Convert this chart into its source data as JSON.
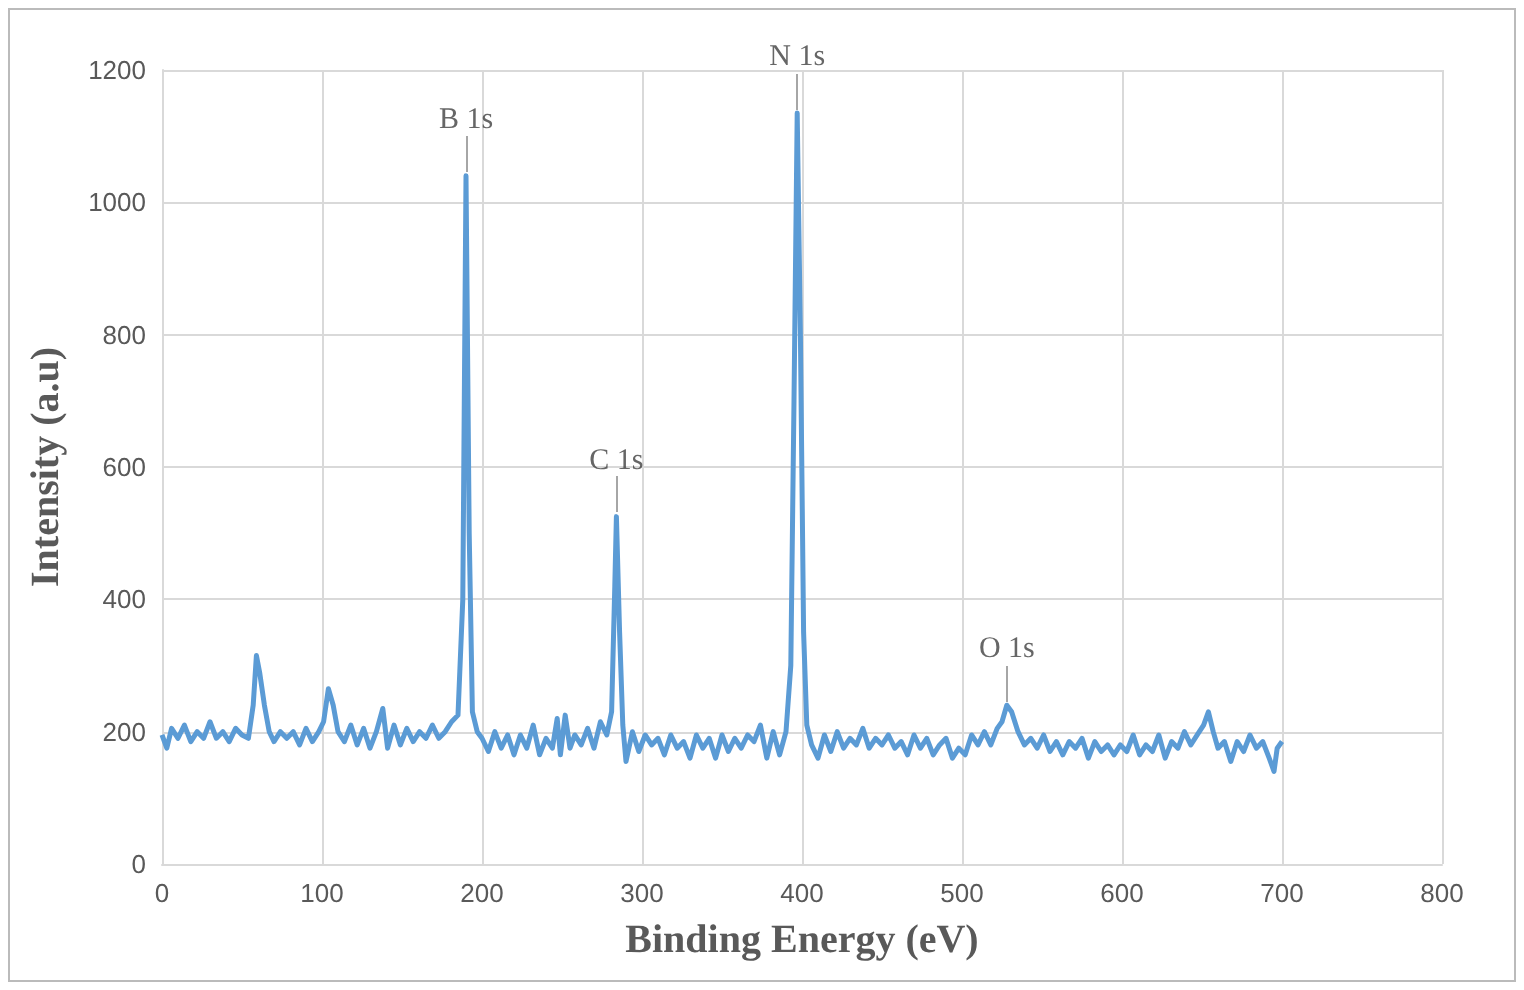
{
  "chart_data": {
    "type": "line",
    "xlabel": "Binding Energy (eV)",
    "ylabel": "Intensity (a.u)",
    "xlim": [
      0,
      800
    ],
    "xticks": [
      0,
      100,
      200,
      300,
      400,
      500,
      600,
      700,
      800
    ],
    "ylim": [
      0,
      1200
    ],
    "yticks": [
      0,
      200,
      400,
      600,
      800,
      1000,
      1200
    ],
    "grid": true,
    "marker": "none",
    "line_style": "solid",
    "annotations": [
      {
        "text": "B 1s",
        "x": 190,
        "y": 1040
      },
      {
        "text": "C 1s",
        "x": 284,
        "y": 525
      },
      {
        "text": "N 1s",
        "x": 397,
        "y": 1135
      },
      {
        "text": "O 1s",
        "x": 528,
        "y": 240
      }
    ],
    "series": [
      {
        "color": "#5b9bd5",
        "x": [
          0,
          3,
          6,
          10,
          14,
          18,
          22,
          26,
          30,
          34,
          38,
          42,
          46,
          50,
          54,
          57,
          59,
          61,
          64,
          67,
          70,
          74,
          78,
          82,
          86,
          90,
          94,
          98,
          101,
          104,
          107,
          110,
          114,
          118,
          122,
          126,
          130,
          134,
          138,
          141,
          145,
          149,
          153,
          157,
          161,
          165,
          169,
          173,
          177,
          181,
          185,
          188,
          190,
          192,
          194,
          197,
          200,
          204,
          208,
          212,
          216,
          220,
          224,
          228,
          232,
          236,
          240,
          244,
          247,
          249,
          252,
          255,
          258,
          262,
          266,
          270,
          274,
          278,
          281,
          283,
          284,
          286,
          288,
          290,
          294,
          298,
          302,
          306,
          310,
          314,
          318,
          322,
          326,
          330,
          334,
          338,
          342,
          346,
          350,
          354,
          358,
          362,
          366,
          370,
          374,
          378,
          382,
          386,
          390,
          393,
          395,
          397,
          399,
          401,
          403,
          406,
          410,
          414,
          418,
          422,
          426,
          430,
          434,
          438,
          442,
          446,
          450,
          454,
          458,
          462,
          466,
          470,
          474,
          478,
          482,
          486,
          490,
          494,
          498,
          502,
          506,
          510,
          514,
          518,
          522,
          525,
          528,
          531,
          535,
          539,
          543,
          547,
          551,
          555,
          559,
          563,
          567,
          571,
          575,
          579,
          583,
          587,
          591,
          595,
          599,
          603,
          607,
          611,
          615,
          619,
          623,
          627,
          631,
          635,
          639,
          643,
          647,
          651,
          654,
          657,
          660,
          664,
          668,
          672,
          676,
          680,
          684,
          688,
          692,
          695,
          697,
          700
        ],
        "values": [
          195,
          175,
          205,
          190,
          210,
          185,
          200,
          190,
          215,
          190,
          200,
          185,
          205,
          195,
          190,
          240,
          315,
          290,
          240,
          200,
          185,
          200,
          190,
          200,
          180,
          205,
          185,
          200,
          215,
          265,
          240,
          200,
          185,
          210,
          180,
          205,
          175,
          200,
          235,
          175,
          210,
          180,
          205,
          185,
          200,
          190,
          210,
          190,
          200,
          215,
          225,
          400,
          1040,
          500,
          230,
          200,
          190,
          170,
          200,
          175,
          195,
          165,
          195,
          175,
          210,
          165,
          190,
          175,
          220,
          165,
          225,
          175,
          195,
          180,
          205,
          175,
          215,
          195,
          230,
          420,
          525,
          350,
          210,
          155,
          200,
          170,
          195,
          180,
          190,
          165,
          195,
          175,
          185,
          160,
          195,
          175,
          190,
          160,
          195,
          170,
          190,
          175,
          195,
          185,
          210,
          160,
          200,
          165,
          200,
          300,
          700,
          1135,
          800,
          350,
          210,
          180,
          160,
          195,
          170,
          200,
          175,
          190,
          180,
          205,
          175,
          190,
          180,
          195,
          175,
          185,
          165,
          195,
          175,
          190,
          165,
          180,
          190,
          160,
          175,
          165,
          195,
          180,
          200,
          180,
          205,
          215,
          240,
          230,
          200,
          180,
          190,
          175,
          195,
          170,
          185,
          165,
          185,
          175,
          190,
          160,
          185,
          170,
          180,
          165,
          180,
          170,
          195,
          165,
          180,
          170,
          195,
          160,
          185,
          175,
          200,
          180,
          195,
          210,
          230,
          200,
          175,
          185,
          155,
          185,
          170,
          195,
          175,
          185,
          160,
          140,
          175,
          185
        ]
      }
    ]
  }
}
